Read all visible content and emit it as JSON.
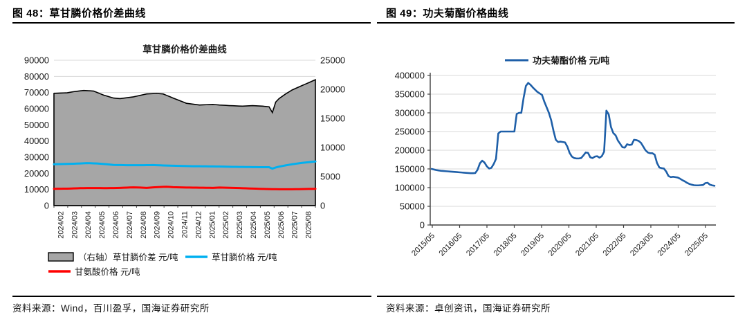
{
  "figure48": {
    "caption": "图 48：草甘膦价格价差曲线",
    "source": "资料来源：Wind，百川盈孚，国海证券研究所"
  },
  "figure49": {
    "caption": "图 49：功夫菊酯价格曲线",
    "source": "资料来源：卓创资讯，国海证券研究所"
  },
  "colors": {
    "grid": "#d9d9d9",
    "axis": "#3f3f3f",
    "area_fill": "#a6a6a6",
    "area_stroke": "#000000",
    "glyphosate_blue": "#00B0F0",
    "glycine_red": "#FF0000",
    "cyhalothrin_blue": "#1E5FA8",
    "text": "#1a1a1a"
  },
  "chart_data": [
    {
      "type": "area+line",
      "title": "草甘膦价格价差曲线",
      "legend_position": "bottom",
      "x_categories": [
        "2024/02",
        "2024/03",
        "2024/04",
        "2024/05",
        "2024/06",
        "2024/07",
        "2024/08",
        "2024/09",
        "2024/10",
        "2024/11",
        "2024/12",
        "2025/01",
        "2025/02",
        "2025/03",
        "2025/04",
        "2025/05",
        "2025/06",
        "2025/07",
        "2025/08"
      ],
      "left_axis": {
        "min": 0,
        "max": 90000,
        "step": 10000
      },
      "right_axis": {
        "min": 0,
        "max": 25000,
        "step": 5000
      },
      "grid": true,
      "series": [
        {
          "name": "（右轴）草甘膦价差 元/吨",
          "kind": "area",
          "axis": "right",
          "values": [
            19300,
            19325,
            19350,
            19375,
            19400,
            19500,
            19600,
            19665,
            19735,
            19800,
            19765,
            19735,
            19700,
            19465,
            19235,
            19000,
            18835,
            18665,
            18500,
            18450,
            18400,
            18475,
            18550,
            18625,
            18700,
            18825,
            18950,
            19075,
            19200,
            19235,
            19265,
            19300,
            19250,
            19200,
            18965,
            18735,
            18500,
            18275,
            18050,
            17825,
            17600,
            17525,
            17450,
            17375,
            17300,
            17325,
            17350,
            17375,
            17400,
            17350,
            17300,
            17265,
            17235,
            17200,
            17175,
            17150,
            17125,
            17100,
            17135,
            17165,
            17200,
            17165,
            17135,
            17100,
            17050,
            17000,
            16000,
            17800,
            18400,
            18800,
            19200,
            19550,
            19900,
            20150,
            20400,
            20650,
            20900,
            21150,
            21400,
            21650
          ]
        },
        {
          "name": "草甘膦价格 元/吨",
          "kind": "line",
          "axis": "left",
          "values": [
            25600,
            25650,
            25700,
            25750,
            25800,
            25875,
            25950,
            26025,
            26100,
            26200,
            26300,
            26235,
            26165,
            26100,
            25935,
            25765,
            25600,
            25400,
            25200,
            25150,
            25100,
            25050,
            25000,
            25000,
            25000,
            25000,
            25000,
            25025,
            25050,
            25075,
            25100,
            25025,
            24950,
            24875,
            24800,
            24750,
            24700,
            24650,
            24600,
            24550,
            24500,
            24450,
            24400,
            24375,
            24350,
            24325,
            24300,
            24275,
            24250,
            24225,
            24200,
            24150,
            24100,
            24050,
            24000,
            23975,
            23950,
            23925,
            23900,
            23875,
            23850,
            23825,
            23800,
            23800,
            23800,
            23800,
            22900,
            23600,
            24100,
            24500,
            24900,
            25250,
            25600,
            25900,
            26200,
            26450,
            26700,
            26900,
            27100,
            27300
          ]
        },
        {
          "name": "甘氨酸价格 元/吨",
          "kind": "line",
          "axis": "left",
          "values": [
            10400,
            10425,
            10450,
            10475,
            10500,
            10575,
            10650,
            10725,
            10800,
            10825,
            10850,
            10875,
            10900,
            10875,
            10850,
            10825,
            10800,
            10850,
            10900,
            10950,
            11000,
            11075,
            11150,
            11225,
            11300,
            11250,
            11200,
            11100,
            11000,
            11150,
            11300,
            11400,
            11500,
            11600,
            11700,
            11550,
            11400,
            11350,
            11300,
            11250,
            11200,
            11175,
            11150,
            11125,
            11100,
            11075,
            11050,
            11025,
            11000,
            11100,
            11200,
            11150,
            11100,
            11050,
            11000,
            10925,
            10850,
            10775,
            10700,
            10625,
            10550,
            10475,
            10400,
            10350,
            10300,
            10250,
            10200,
            10175,
            10150,
            10125,
            10100,
            10125,
            10150,
            10175,
            10200,
            10240,
            10275,
            10315,
            10350,
            10400
          ]
        }
      ]
    },
    {
      "type": "line",
      "legend": "功夫菊酯价格 元/吨",
      "x_tick_labels": [
        "2015/05",
        "2016/05",
        "2017/05",
        "2018/05",
        "2019/05",
        "2020/05",
        "2021/05",
        "2022/05",
        "2023/05",
        "2024/05",
        "2025/05"
      ],
      "months_per_tick": 12,
      "y_axis": {
        "min": 0,
        "max": 400000,
        "step": 50000
      },
      "grid": true,
      "values": [
        150000,
        148500,
        147000,
        146000,
        145000,
        144500,
        144000,
        143500,
        143000,
        142500,
        142000,
        141500,
        141000,
        140500,
        140000,
        139500,
        139000,
        138500,
        138500,
        139000,
        148000,
        165000,
        172000,
        167000,
        157000,
        151000,
        153000,
        163000,
        177000,
        245000,
        250000,
        250000,
        250000,
        250000,
        250000,
        250000,
        250000,
        297000,
        300000,
        300000,
        340000,
        372000,
        380000,
        375000,
        368000,
        362000,
        356000,
        352000,
        348000,
        330000,
        315000,
        300000,
        280000,
        252000,
        228000,
        222000,
        223000,
        222000,
        221000,
        210000,
        193000,
        183000,
        179000,
        178000,
        178000,
        179000,
        186000,
        194000,
        193000,
        181000,
        179000,
        183000,
        184000,
        180000,
        184000,
        196000,
        306000,
        296000,
        262000,
        246000,
        240000,
        226000,
        217000,
        208000,
        207000,
        216000,
        214000,
        215000,
        228000,
        227000,
        225000,
        220000,
        210000,
        200000,
        194000,
        192000,
        192000,
        188000,
        166000,
        154000,
        152000,
        151000,
        143000,
        131000,
        128000,
        129000,
        128000,
        127000,
        124000,
        120000,
        117000,
        113000,
        110000,
        108000,
        106500,
        106000,
        106000,
        106500,
        107000,
        112000,
        113000,
        108000,
        106000,
        105000
      ]
    }
  ]
}
